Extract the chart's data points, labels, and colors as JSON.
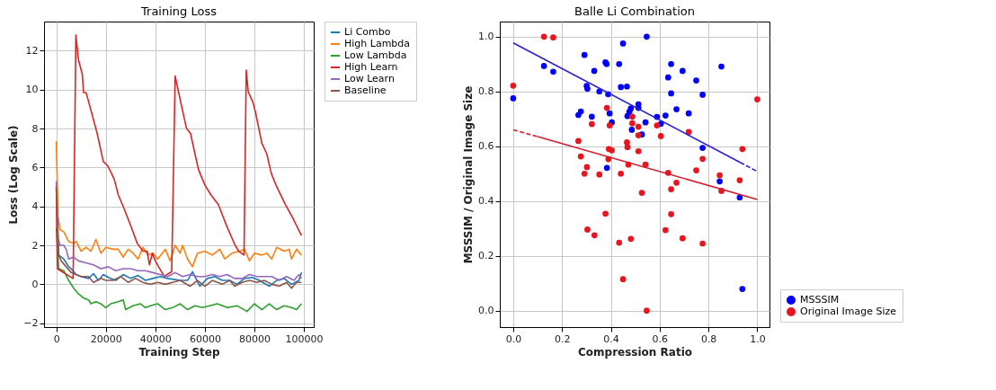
{
  "chart_data": [
    {
      "type": "line",
      "title": "Training Loss",
      "xlabel": "Training Step",
      "ylabel": "Loss (Log Scale)",
      "xlim": [
        -4950,
        103950
      ],
      "ylim": [
        -2.2,
        13.5
      ],
      "xticks": [
        0,
        20000,
        40000,
        60000,
        80000,
        100000
      ],
      "yticks": [
        -2,
        0,
        2,
        4,
        6,
        8,
        10,
        12
      ],
      "grid": true,
      "legend": "top right",
      "series": [
        {
          "name": "Li Combo",
          "color": "#1f77b4",
          "x": [
            0,
            1000,
            3000,
            5000,
            6000,
            8000,
            10000,
            13000,
            15000,
            17000,
            19000,
            21000,
            24000,
            27000,
            30000,
            33000,
            36000,
            39000,
            42000,
            45000,
            50000,
            53000,
            55000,
            58000,
            61000,
            64000,
            67000,
            70000,
            73000,
            76000,
            79000,
            82000,
            86000,
            89000,
            92000,
            95000,
            98000,
            99000
          ],
          "values": [
            5.0,
            1.5,
            1.3,
            0.9,
            0.8,
            0.5,
            0.4,
            0.3,
            0.55,
            0.2,
            0.5,
            0.35,
            0.2,
            0.5,
            0.3,
            0.45,
            0.2,
            0.3,
            0.4,
            0.3,
            0.2,
            0.2,
            0.65,
            -0.1,
            0.3,
            0.4,
            0.2,
            0.2,
            0.0,
            0.3,
            0.35,
            0.2,
            -0.1,
            0.2,
            0.3,
            0.0,
            0.2,
            0.6
          ]
        },
        {
          "name": "High Lambda",
          "color": "#ff7f0e",
          "x": [
            0,
            700,
            1500,
            3000,
            5000,
            7000,
            8000,
            10000,
            12000,
            14000,
            16000,
            18000,
            20000,
            23000,
            25000,
            27000,
            29000,
            31000,
            33000,
            35000,
            37000,
            39000,
            41000,
            44000,
            46000,
            48000,
            50000,
            51000,
            53000,
            55000,
            57000,
            60000,
            63000,
            66000,
            68000,
            71000,
            74000,
            76000,
            78000,
            80000,
            83000,
            85000,
            87000,
            89000,
            92000,
            94000,
            95000,
            97000,
            99000
          ],
          "values": [
            7.35,
            3.5,
            2.8,
            2.7,
            2.2,
            2.1,
            2.2,
            1.7,
            1.9,
            1.7,
            2.3,
            1.6,
            1.9,
            1.8,
            1.8,
            1.4,
            1.8,
            1.6,
            1.3,
            1.9,
            1.5,
            1.6,
            1.3,
            1.8,
            1.2,
            2.0,
            1.6,
            2.0,
            1.3,
            0.9,
            1.6,
            1.7,
            1.5,
            1.8,
            1.3,
            1.6,
            1.7,
            1.8,
            1.2,
            1.6,
            1.5,
            1.6,
            1.3,
            1.9,
            1.7,
            1.8,
            1.3,
            1.8,
            1.5
          ]
        },
        {
          "name": "Low Lambda",
          "color": "#2ca02c",
          "x": [
            0,
            1000,
            3000,
            5000,
            7000,
            9000,
            11000,
            13000,
            14000,
            16000,
            18000,
            20000,
            22000,
            25000,
            27000,
            28000,
            31000,
            34000,
            36000,
            38000,
            41000,
            44000,
            47000,
            50000,
            53000,
            56000,
            59000,
            62000,
            65000,
            69000,
            73000,
            77000,
            80000,
            83000,
            86000,
            89000,
            92000,
            95000,
            97000,
            99000
          ],
          "values": [
            2.9,
            0.8,
            0.7,
            0.2,
            -0.2,
            -0.5,
            -0.7,
            -0.8,
            -1.0,
            -0.9,
            -1.0,
            -1.2,
            -1.0,
            -0.9,
            -0.8,
            -1.3,
            -1.1,
            -1.0,
            -1.2,
            -1.1,
            -1.0,
            -1.3,
            -1.2,
            -1.0,
            -1.3,
            -1.1,
            -1.2,
            -1.1,
            -1.0,
            -1.2,
            -1.1,
            -1.4,
            -1.0,
            -1.3,
            -1.0,
            -1.3,
            -1.1,
            -1.2,
            -1.3,
            -1.0
          ]
        },
        {
          "name": "High Learn",
          "color": "#d62728",
          "x": [
            0,
            400,
            2300,
            6000,
            6800,
            7900,
            9000,
            10500,
            11000,
            12000,
            12800,
            16500,
            19000,
            20700,
            23400,
            25000,
            27000,
            29800,
            32700,
            35000,
            36700,
            37600,
            38800,
            40000,
            41300,
            43600,
            46600,
            48000,
            50500,
            52600,
            54200,
            56000,
            57400,
            60000,
            62400,
            65400,
            68800,
            72200,
            73700,
            75800,
            76700,
            77500,
            79400,
            80500,
            83000,
            85000,
            86800,
            88700,
            92500,
            95500,
            99000
          ],
          "values": [
            5.1,
            0.8,
            0.65,
            0.36,
            0.3,
            12.8,
            11.5,
            10.8,
            9.85,
            9.85,
            9.5,
            7.75,
            6.3,
            6.1,
            5.4,
            4.6,
            4.0,
            3.1,
            2.1,
            1.7,
            1.7,
            1.0,
            1.6,
            1.2,
            0.9,
            0.4,
            0.65,
            10.7,
            9.2,
            8.0,
            7.75,
            6.7,
            5.9,
            5.1,
            4.6,
            4.1,
            3.0,
            2.0,
            1.7,
            1.5,
            11.0,
            9.9,
            9.35,
            8.8,
            7.25,
            6.7,
            5.7,
            5.1,
            4.1,
            3.4,
            2.5
          ]
        },
        {
          "name": "Low Learn",
          "color": "#9467bd",
          "x": [
            0,
            700,
            1500,
            3000,
            4000,
            5000,
            7000,
            9000,
            12000,
            15000,
            18000,
            21000,
            24000,
            27000,
            30000,
            33000,
            36000,
            39000,
            42000,
            45000,
            48000,
            51000,
            54000,
            57000,
            60000,
            63000,
            66000,
            69000,
            72000,
            75000,
            78000,
            81000,
            84000,
            87000,
            90000,
            93000,
            96000,
            98000,
            99000
          ],
          "values": [
            5.3,
            2.4,
            2.0,
            2.0,
            1.8,
            1.3,
            1.4,
            1.2,
            1.1,
            1.0,
            0.8,
            0.9,
            0.7,
            0.8,
            0.8,
            0.7,
            0.7,
            0.6,
            0.5,
            0.4,
            0.6,
            0.4,
            0.5,
            0.4,
            0.4,
            0.5,
            0.4,
            0.5,
            0.3,
            0.3,
            0.5,
            0.4,
            0.4,
            0.4,
            0.2,
            0.4,
            0.2,
            0.5,
            0.3
          ]
        },
        {
          "name": "Baseline",
          "color": "#8c564b",
          "x": [
            0,
            700,
            2000,
            4000,
            6000,
            8000,
            10000,
            13000,
            15000,
            18000,
            20000,
            23000,
            26000,
            29000,
            32000,
            35000,
            38000,
            41000,
            44000,
            47000,
            50000,
            54000,
            57000,
            60000,
            63000,
            67000,
            70000,
            72000,
            75000,
            78000,
            81000,
            84000,
            87000,
            90000,
            93000,
            95000,
            97000,
            99000
          ],
          "values": [
            4.9,
            1.6,
            1.2,
            0.9,
            0.6,
            0.5,
            0.4,
            0.4,
            0.1,
            0.3,
            0.2,
            0.2,
            0.4,
            0.1,
            0.3,
            0.1,
            0.0,
            0.1,
            0.0,
            0.1,
            0.2,
            -0.1,
            0.2,
            -0.1,
            0.2,
            0.0,
            0.2,
            -0.1,
            0.1,
            0.2,
            0.1,
            0.2,
            0.0,
            -0.1,
            0.1,
            -0.2,
            0.1,
            0.1
          ]
        }
      ]
    },
    {
      "type": "scatter",
      "title": "Balle Li Combination",
      "xlabel": "Compression Ratio",
      "ylabel": "MSSSIM / Original Image Size",
      "xlim": [
        -0.055,
        1.05
      ],
      "ylim": [
        -0.06,
        1.055
      ],
      "xticks": [
        {
          "value": 0,
          "label": "0.0"
        },
        {
          "value": 0.2,
          "label": "0.2"
        },
        {
          "value": 0.4,
          "label": "0.4"
        },
        {
          "value": 0.6,
          "label": "0.6"
        },
        {
          "value": 0.8,
          "label": "0.8"
        },
        {
          "value": 1,
          "label": "1.0"
        }
      ],
      "yticks": [
        {
          "value": 0,
          "label": "0.0"
        },
        {
          "value": 0.2,
          "label": "0.2"
        },
        {
          "value": 0.4,
          "label": "0.4"
        },
        {
          "value": 0.6,
          "label": "0.6"
        },
        {
          "value": 0.8,
          "label": "0.8"
        },
        {
          "value": 1,
          "label": "1.0"
        }
      ],
      "grid": true,
      "legend": "bottom right",
      "series": [
        {
          "name": "MSSSIM",
          "color": "#0000ff",
          "marker": "circle",
          "x": [
            0,
            0.126,
            0.164,
            0.292,
            0.301,
            0.304,
            0.332,
            0.267,
            0.277,
            0.322,
            0.353,
            0.378,
            0.383,
            0.389,
            0.395,
            0.404,
            0.384,
            0.434,
            0.45,
            0.441,
            0.466,
            0.468,
            0.476,
            0.482,
            0.486,
            0.513,
            0.513,
            0.527,
            0.542,
            0.547,
            0.589,
            0.605,
            0.624,
            0.635,
            0.647,
            0.647,
            0.669,
            0.694,
            0.719,
            0.75,
            0.776,
            0.776,
            0.853,
            0.846,
            0.928,
            0.939
          ],
          "values": [
            0.775,
            0.893,
            0.872,
            0.933,
            0.82,
            0.81,
            0.875,
            0.714,
            0.727,
            0.708,
            0.8,
            0.906,
            0.9,
            0.79,
            0.72,
            0.687,
            0.521,
            0.9,
            0.975,
            0.816,
            0.818,
            0.71,
            0.726,
            0.738,
            0.66,
            0.753,
            0.74,
            0.643,
            0.687,
            1.0,
            0.707,
            0.682,
            0.712,
            0.851,
            0.9,
            0.793,
            0.735,
            0.875,
            0.72,
            0.84,
            0.788,
            0.594,
            0.891,
            0.472,
            0.413,
            0.079
          ]
        },
        {
          "name": "Original Image Size",
          "color": "#e8141e",
          "marker": "circle",
          "x": [
            0,
            0.126,
            0.164,
            0.267,
            0.277,
            0.292,
            0.302,
            0.304,
            0.322,
            0.333,
            0.353,
            0.378,
            0.384,
            0.395,
            0.392,
            0.404,
            0.39,
            0.434,
            0.441,
            0.45,
            0.466,
            0.468,
            0.472,
            0.482,
            0.488,
            0.488,
            0.513,
            0.513,
            0.513,
            0.527,
            0.542,
            0.547,
            0.589,
            0.605,
            0.624,
            0.635,
            0.647,
            0.647,
            0.669,
            0.694,
            0.719,
            0.75,
            0.776,
            0.776,
            0.846,
            0.853,
            0.928,
            0.939,
            1.0
          ],
          "values": [
            0.821,
            1.0,
            0.997,
            0.619,
            0.563,
            0.5,
            0.524,
            0.296,
            0.681,
            0.275,
            0.497,
            0.354,
            0.74,
            0.676,
            0.59,
            0.585,
            0.553,
            0.248,
            0.5,
            0.115,
            0.614,
            0.597,
            0.533,
            0.262,
            0.708,
            0.684,
            0.671,
            0.64,
            0.582,
            0.43,
            0.533,
            0.0,
            0.676,
            0.637,
            0.294,
            0.503,
            0.443,
            0.352,
            0.467,
            0.264,
            0.652,
            0.512,
            0.554,
            0.245,
            0.494,
            0.437,
            0.476,
            0.59,
            0.771
          ]
        },
        {
          "type": "line",
          "color": "#2a1fd1",
          "line_style": "solid",
          "x": [
            0,
            0.93
          ],
          "values": [
            0.977,
            0.541
          ]
        },
        {
          "type": "line",
          "color": "#2a1fd1",
          "line_style": "dashed",
          "x": [
            0.93,
            1
          ],
          "values": [
            0.541,
            0.508
          ]
        },
        {
          "type": "line",
          "color": "#d41c2c",
          "line_style": "dashed",
          "x": [
            0,
            0.1
          ],
          "values": [
            0.66,
            0.635
          ]
        },
        {
          "type": "line",
          "color": "#d41c2c",
          "line_style": "solid",
          "x": [
            0.1,
            1
          ],
          "values": [
            0.635,
            0.406
          ]
        }
      ]
    }
  ]
}
